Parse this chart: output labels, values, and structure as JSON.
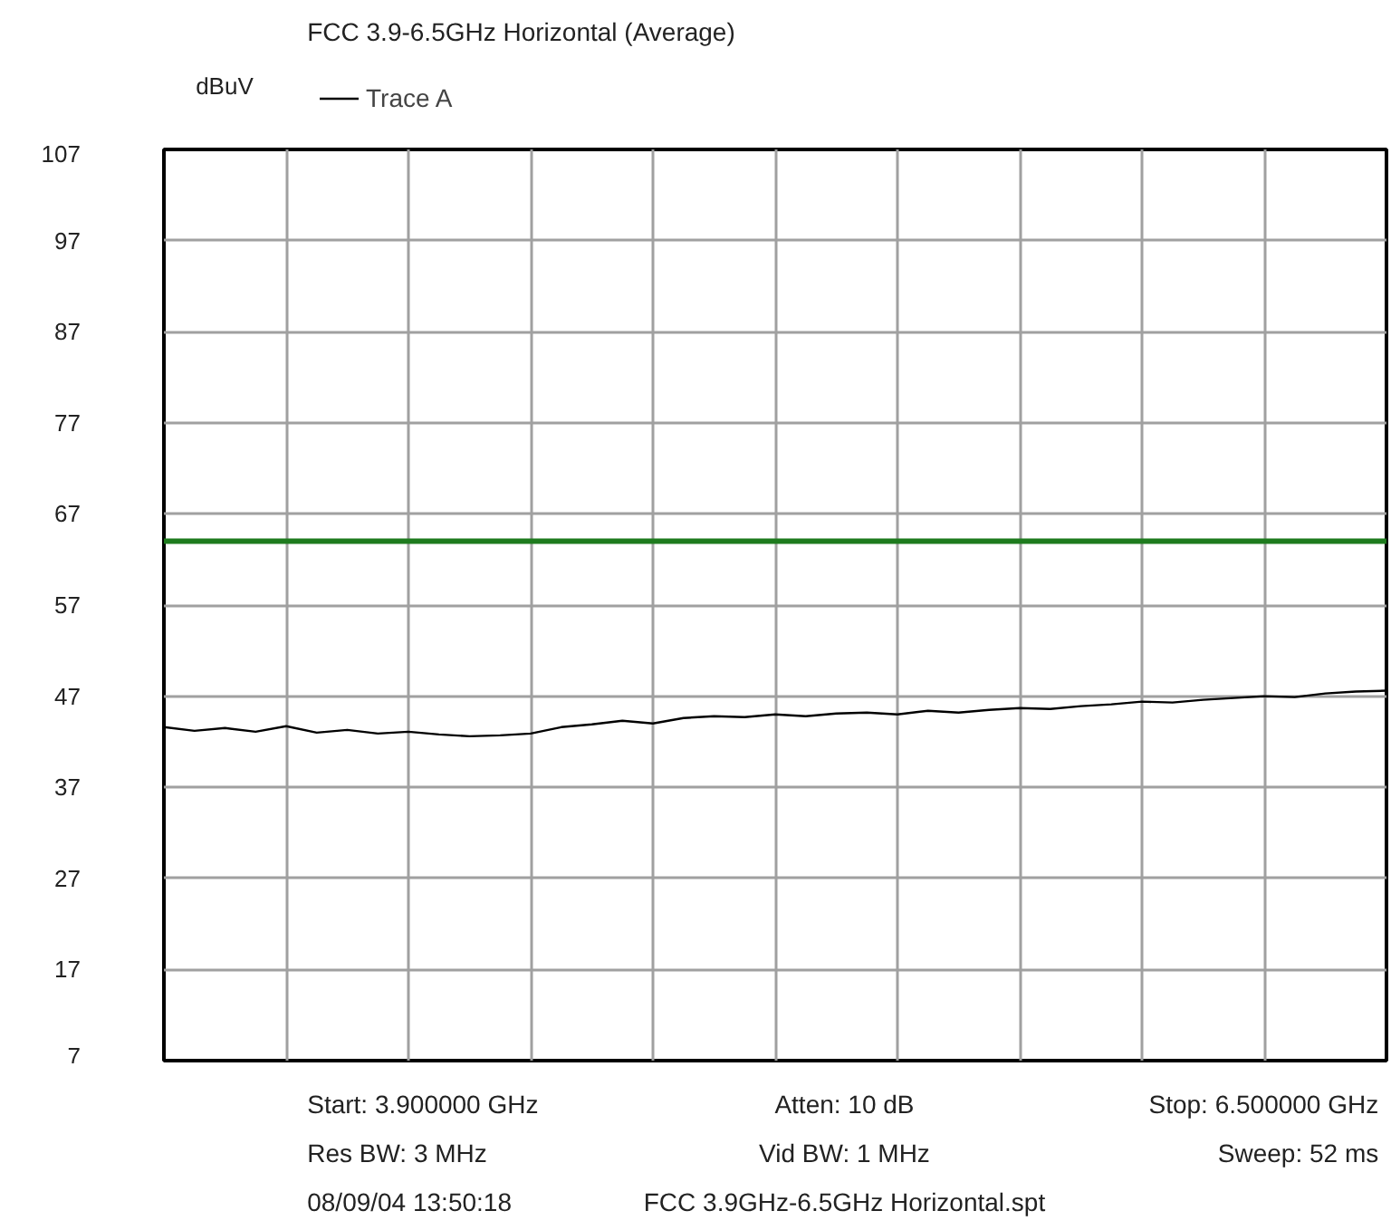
{
  "chart_data": {
    "type": "line",
    "title": "FCC 3.9-6.5GHz Horizontal (Average)",
    "ylabel": "dBuV",
    "categories": [
      null,
      null,
      null,
      null,
      null,
      null,
      null,
      null,
      null,
      null,
      null,
      null,
      null,
      null,
      null,
      null,
      null,
      null,
      null,
      null,
      null,
      null,
      null,
      null,
      null,
      null,
      null,
      null,
      null,
      null,
      null,
      null,
      null,
      null,
      null,
      null,
      null,
      null,
      null,
      null,
      null
    ],
    "series": [
      {
        "name": "Trace A",
        "color": "#000000",
        "values": [
          43.6,
          43.2,
          43.5,
          43.1,
          43.7,
          43.0,
          43.3,
          42.9,
          43.1,
          42.8,
          42.6,
          42.7,
          42.9,
          43.6,
          43.9,
          44.3,
          44.0,
          44.6,
          44.8,
          44.7,
          45.0,
          44.8,
          45.1,
          45.2,
          45.0,
          45.4,
          45.2,
          45.5,
          45.7,
          45.6,
          45.9,
          46.1,
          46.4,
          46.3,
          46.6,
          46.8,
          47.0,
          46.9,
          47.3,
          47.5,
          47.6
        ]
      }
    ],
    "ref_lines": [
      {
        "axis": "y",
        "value": 64,
        "color": "#1e7b1e"
      }
    ],
    "ylim": [
      7,
      107
    ],
    "yticks": [
      7,
      17,
      27,
      37,
      47,
      57,
      67,
      77,
      87,
      97,
      107
    ],
    "tick_labels": "y",
    "grid": true,
    "legend": "top left",
    "marker": "none",
    "line_style": "solid",
    "annotations": [
      "Start: 3.900000 GHz",
      "Atten: 10 dB",
      "Stop: 6.500000 GHz",
      "Res BW: 3 MHz",
      "Vid BW: 1 MHz",
      "Sweep: 52 ms",
      "08/09/04 13:50:18",
      "FCC 3.9GHz-6.5GHz Horizontal.spt"
    ]
  }
}
